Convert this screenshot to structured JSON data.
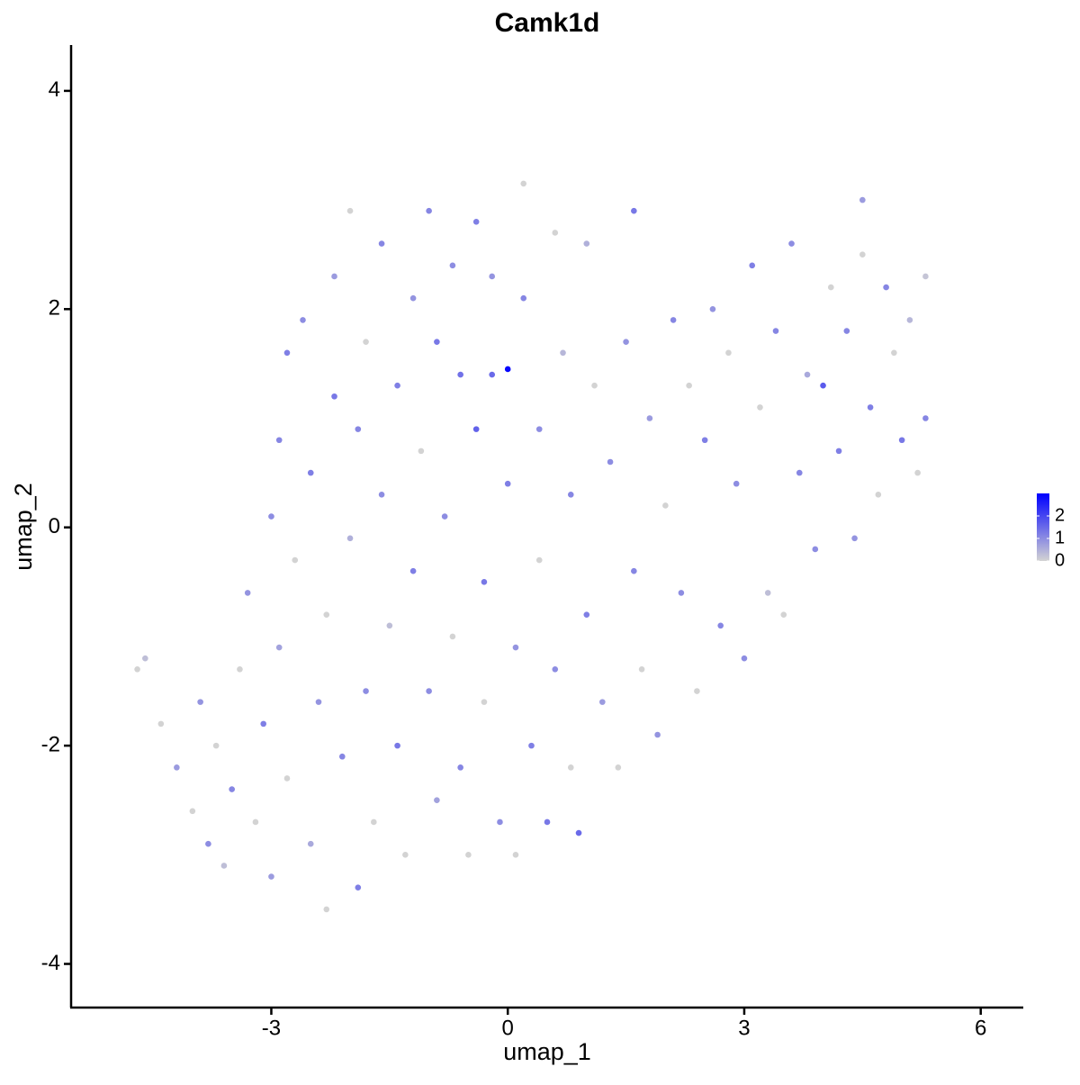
{
  "chart_data": {
    "type": "scatter",
    "title": "Camk1d",
    "xlabel": "umap_1",
    "ylabel": "umap_2",
    "x": [
      -4.7,
      -4.6,
      -4.4,
      -4.2,
      -4.0,
      -3.9,
      -3.8,
      -3.7,
      -3.6,
      -3.5,
      -3.4,
      -3.3,
      -3.2,
      -3.1,
      -3.0,
      -3.0,
      -2.9,
      -2.9,
      -2.8,
      -2.8,
      -2.7,
      -2.6,
      -2.5,
      -2.5,
      -2.4,
      -2.3,
      -2.3,
      -2.2,
      -2.2,
      -2.1,
      -2.0,
      -2.0,
      -1.9,
      -1.9,
      -1.8,
      -1.8,
      -1.7,
      -1.6,
      -1.6,
      -1.5,
      -1.4,
      -1.4,
      -1.3,
      -1.2,
      -1.2,
      -1.1,
      -1.0,
      -1.0,
      -0.9,
      -0.9,
      -0.8,
      -0.7,
      -0.7,
      -0.6,
      -0.6,
      -0.5,
      -0.4,
      -0.4,
      -0.3,
      -0.3,
      -0.2,
      -0.2,
      -0.1,
      0.0,
      0.0,
      0.1,
      0.1,
      0.2,
      0.2,
      0.3,
      0.4,
      0.4,
      0.5,
      0.6,
      0.6,
      0.7,
      0.8,
      0.8,
      0.9,
      1.0,
      1.0,
      1.1,
      1.2,
      1.3,
      1.4,
      1.5,
      1.6,
      1.6,
      1.7,
      1.8,
      1.9,
      2.0,
      2.1,
      2.2,
      2.3,
      2.4,
      2.5,
      2.6,
      2.7,
      2.8,
      2.9,
      3.0,
      3.1,
      3.2,
      3.3,
      3.4,
      3.5,
      3.6,
      3.7,
      3.8,
      3.9,
      4.0,
      4.1,
      4.2,
      4.3,
      4.4,
      4.5,
      4.5,
      4.6,
      4.7,
      4.8,
      4.9,
      5.0,
      5.1,
      5.2,
      5.3,
      5.3
    ],
    "y": [
      -1.3,
      -1.2,
      -1.8,
      -2.2,
      -2.6,
      -1.6,
      -2.9,
      -2.0,
      -3.1,
      -2.4,
      -1.3,
      -0.6,
      -2.7,
      -1.8,
      -3.2,
      0.1,
      -1.1,
      0.8,
      1.6,
      -2.3,
      -0.3,
      1.9,
      -2.9,
      0.5,
      -1.6,
      -0.8,
      -3.5,
      2.3,
      1.2,
      -2.1,
      -0.1,
      2.9,
      -3.3,
      0.9,
      1.7,
      -1.5,
      -2.7,
      2.6,
      0.3,
      -0.9,
      1.3,
      -2.0,
      -3.0,
      2.1,
      -0.4,
      0.7,
      -1.5,
      2.9,
      -2.5,
      1.7,
      0.1,
      -1.0,
      2.4,
      1.4,
      -2.2,
      -3.0,
      0.9,
      2.8,
      -0.5,
      -1.6,
      1.4,
      2.3,
      -2.7,
      1.45,
      0.4,
      -3.0,
      -1.1,
      3.15,
      2.1,
      -2.0,
      0.9,
      -0.3,
      -2.7,
      2.7,
      -1.3,
      1.6,
      -2.2,
      0.3,
      -2.8,
      -0.8,
      2.6,
      1.3,
      -1.6,
      0.6,
      -2.2,
      1.7,
      -0.4,
      2.9,
      -1.3,
      1.0,
      -1.9,
      0.2,
      1.9,
      -0.6,
      1.3,
      -1.5,
      0.8,
      2.0,
      -0.9,
      1.6,
      0.4,
      -1.2,
      2.4,
      1.1,
      -0.6,
      1.8,
      -0.8,
      2.6,
      0.5,
      1.4,
      -0.2,
      1.3,
      2.2,
      0.7,
      1.8,
      -0.1,
      3.0,
      2.5,
      1.1,
      0.3,
      2.2,
      1.6,
      0.8,
      1.9,
      0.5,
      2.3,
      1.0
    ],
    "values": [
      0,
      0.3,
      0,
      0.8,
      0,
      0.9,
      1.0,
      0,
      0.3,
      1.1,
      0,
      0.9,
      0,
      1.2,
      0.8,
      1.0,
      0.7,
      1.1,
      1.2,
      0,
      0,
      1.0,
      0.6,
      1.2,
      0.9,
      0,
      0,
      0.8,
      1.3,
      1.1,
      0.5,
      0,
      1.2,
      1.1,
      0,
      1.0,
      0,
      1.1,
      1.0,
      0.3,
      1.2,
      1.3,
      0,
      0.9,
      1.2,
      0,
      1.0,
      1.1,
      0.7,
      1.3,
      1.0,
      0,
      1.0,
      1.4,
      1.1,
      0,
      1.6,
      1.2,
      1.3,
      0,
      1.5,
      0.9,
      1.0,
      2.9,
      1.2,
      0,
      0.9,
      0,
      1.1,
      1.2,
      1.0,
      0,
      1.3,
      0,
      1.0,
      0.4,
      0,
      1.1,
      1.5,
      1.2,
      0.5,
      0,
      0.8,
      1.0,
      0,
      0.9,
      1.1,
      1.3,
      0,
      0.8,
      0.9,
      0,
      1.1,
      1.0,
      0,
      0,
      1.2,
      0.9,
      1.1,
      0,
      1.0,
      1.0,
      1.2,
      0,
      0.3,
      1.1,
      0,
      1.0,
      1.1,
      0.6,
      1.0,
      1.7,
      0,
      1.2,
      1.1,
      0.9,
      0.8,
      0,
      1.2,
      0,
      1.1,
      0,
      1.3,
      0.4,
      0,
      0.2,
      1.1
    ],
    "xlim": [
      -5.54,
      6.54
    ],
    "xticks": [
      -3,
      0,
      3,
      6
    ],
    "ylim": [
      -4.4,
      4.42
    ],
    "yticks": [
      -4,
      -2,
      0,
      2,
      4
    ],
    "colorscale": [
      "#d3d3d3",
      "#0000ff"
    ],
    "colorlim": [
      0,
      3
    ],
    "colorticks": [
      0,
      1,
      2
    ]
  }
}
